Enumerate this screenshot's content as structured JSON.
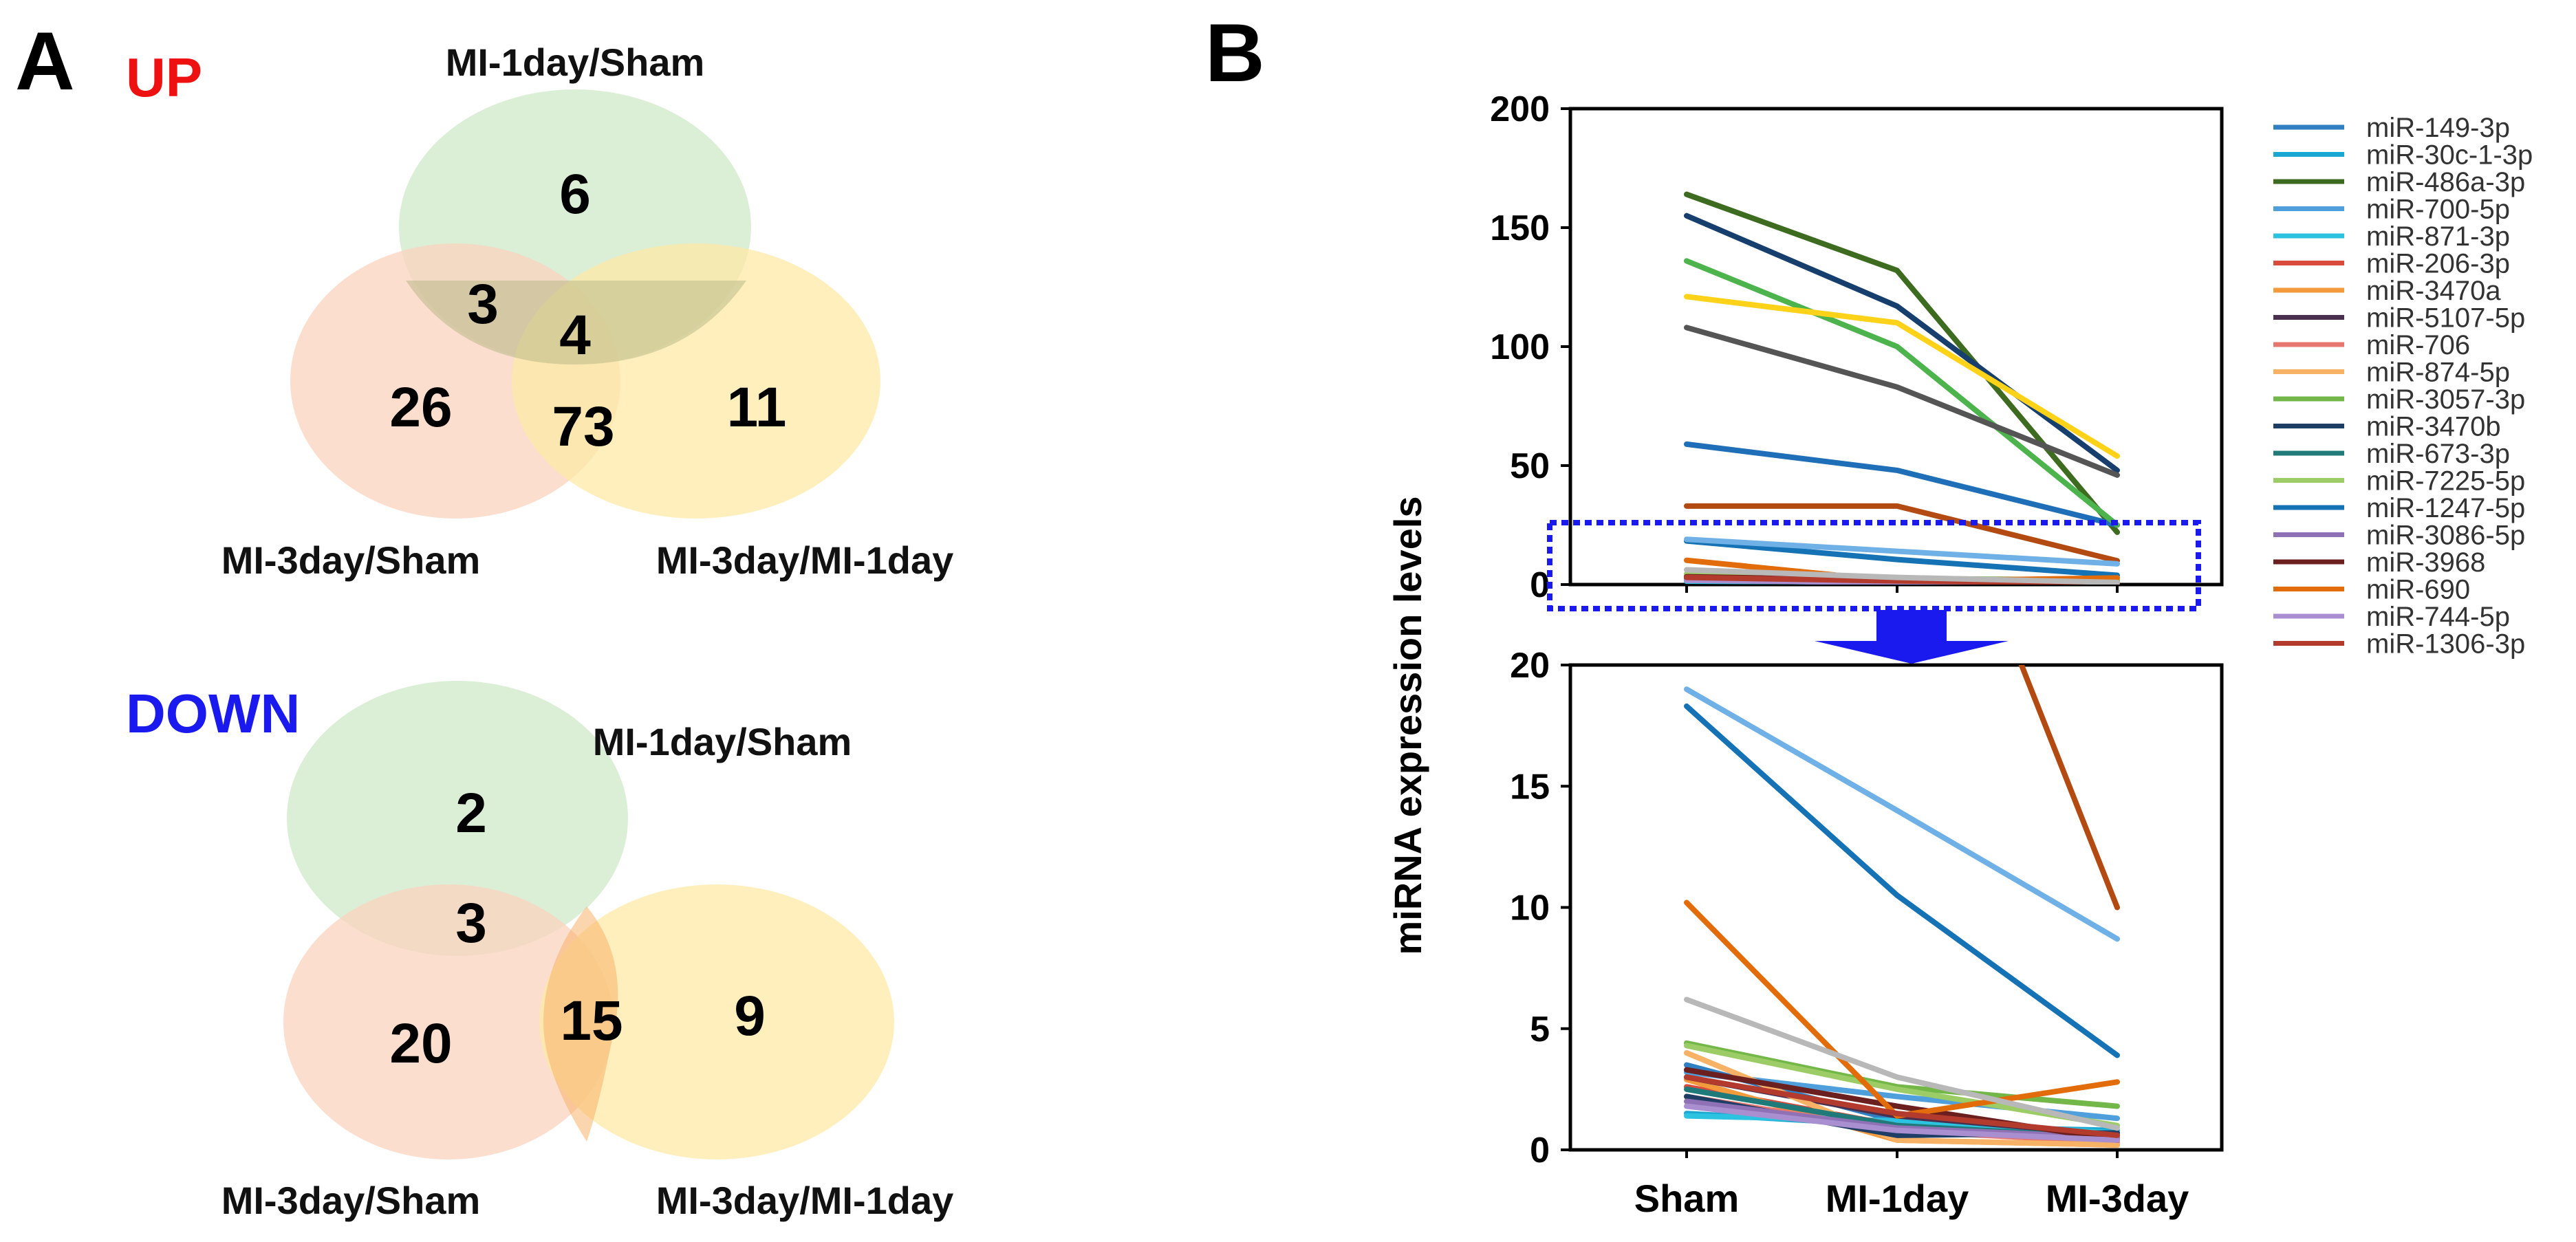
{
  "panels": {
    "a_letter": "A",
    "b_letter": "B"
  },
  "venn_up": {
    "title": "UP",
    "title_color": "#ee1111",
    "sets": {
      "a": "MI-1day/Sham",
      "b": "MI-3day/Sham",
      "c": "MI-3day/MI-1day"
    },
    "counts": {
      "a_only": "6",
      "ab": "3",
      "abc": "4",
      "b_only": "26",
      "bc": "73",
      "c_only": "11"
    }
  },
  "venn_down": {
    "title": "DOWN",
    "title_color": "#1a1aee",
    "sets": {
      "a": "MI-1day/Sham",
      "b": "MI-3day/Sham",
      "c": "MI-3day/MI-1day"
    },
    "counts": {
      "a_only": "2",
      "ab": "3",
      "b_only": "20",
      "bc": "15",
      "c_only": "9"
    }
  },
  "set_colors": {
    "a": "#cfe8c8",
    "b": "#fbd3bd",
    "c": "#fde9a6",
    "zoom_box": "#1a1aee",
    "arrow": "#1a1aee"
  },
  "chart_data": {
    "type": "line",
    "categories": [
      "Sham",
      "MI-1day",
      "MI-3day"
    ],
    "ylabel": "miRNA expression levels",
    "top_ylim": [
      0,
      200
    ],
    "top_yticks": [
      0,
      50,
      100,
      150,
      200
    ],
    "bottom_ylim": [
      0,
      20
    ],
    "bottom_yticks": [
      0,
      5,
      10,
      15,
      20
    ],
    "zoom_note": "dotted box marks the 0-20 range shown enlarged in the lower plot",
    "series": [
      {
        "name": "miR-149-3p",
        "color": "#2f7fc1",
        "values": [
          3.5,
          1.2,
          0.6
        ]
      },
      {
        "name": "miR-30c-1-3p",
        "color": "#1ba7d3",
        "values": [
          1.5,
          1.0,
          0.8
        ]
      },
      {
        "name": "miR-486a-3p",
        "color": "#3d6b1f",
        "values": [
          164,
          132,
          22
        ]
      },
      {
        "name": "miR-700-5p",
        "color": "#4f9fdc",
        "values": [
          3.2,
          2.2,
          1.3
        ]
      },
      {
        "name": "miR-871-3p",
        "color": "#2cc3e0",
        "values": [
          1.4,
          1.2,
          0.7
        ]
      },
      {
        "name": "miR-206-3p",
        "color": "#d94c3d",
        "values": [
          2.6,
          1.0,
          0.4
        ]
      },
      {
        "name": "miR-3470a",
        "color": "#f39a3d",
        "values": [
          2.9,
          0.4,
          0.2
        ]
      },
      {
        "name": "miR-5107-5p",
        "color": "#4b2f4f",
        "values": [
          3.0,
          1.4,
          0.6
        ]
      },
      {
        "name": "miR-706",
        "color": "#e7766e",
        "values": [
          2.2,
          0.8,
          0.3
        ]
      },
      {
        "name": "miR-874-5p",
        "color": "#f7b266",
        "values": [
          4.0,
          0.4,
          0.2
        ]
      },
      {
        "name": "miR-3057-3p",
        "color": "#72b747",
        "values": [
          4.4,
          2.6,
          1.8
        ]
      },
      {
        "name": "miR-3470b",
        "color": "#1f3e66",
        "values": [
          2.2,
          0.6,
          0.7
        ]
      },
      {
        "name": "miR-673-3p",
        "color": "#217a7a",
        "values": [
          2.5,
          1.0,
          0.5
        ]
      },
      {
        "name": "miR-7225-5p",
        "color": "#9ccc65",
        "values": [
          4.3,
          2.5,
          1.0
        ]
      },
      {
        "name": "miR-1247-5p",
        "color": "#1573b5",
        "values": [
          18.3,
          10.5,
          3.9
        ]
      },
      {
        "name": "miR-3086-5p",
        "color": "#8e72b5",
        "values": [
          2.0,
          0.9,
          0.5
        ]
      },
      {
        "name": "miR-3968",
        "color": "#6b1f1f",
        "values": [
          3.3,
          1.8,
          0.4
        ]
      },
      {
        "name": "miR-690",
        "color": "#e36c0a",
        "values": [
          10.2,
          1.4,
          2.8
        ]
      },
      {
        "name": "miR-744-5p",
        "color": "#a98fd0",
        "values": [
          1.8,
          0.8,
          0.4
        ]
      },
      {
        "name": "miR-1306-3p",
        "color": "#b33b2e",
        "values": [
          3.0,
          1.5,
          0.6
        ]
      },
      {
        "name": "",
        "color": "#1f6fb8",
        "values": [
          59,
          48,
          25
        ],
        "unlabeled": true
      },
      {
        "name": "",
        "color": "#163f6e",
        "values": [
          155,
          117,
          48
        ],
        "unlabeled": true
      },
      {
        "name": "",
        "color": "#4db34d",
        "values": [
          136,
          100,
          25
        ],
        "unlabeled": true
      },
      {
        "name": "",
        "color": "#ffd21a",
        "values": [
          121,
          110,
          54
        ],
        "unlabeled": true
      },
      {
        "name": "",
        "color": "#555555",
        "values": [
          108,
          83,
          46
        ],
        "unlabeled": true
      },
      {
        "name": "",
        "color": "#b34a12",
        "values": [
          33,
          33,
          10
        ],
        "unlabeled": true
      },
      {
        "name": "",
        "color": "#6fb1e6",
        "values": [
          19,
          14,
          8.7
        ],
        "unlabeled": true
      },
      {
        "name": "",
        "color": "#b8b8b8",
        "values": [
          6.2,
          3.0,
          0.9
        ],
        "unlabeled": true
      }
    ]
  }
}
